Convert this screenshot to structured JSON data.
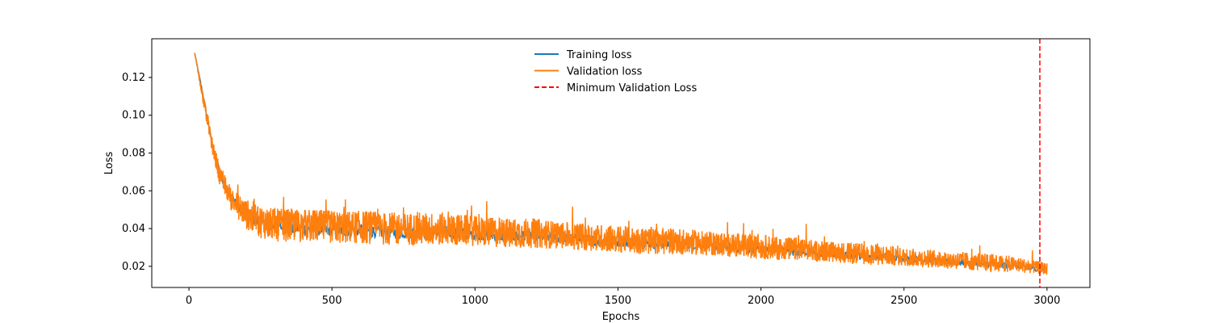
{
  "chart_data": {
    "type": "line",
    "title": "",
    "xlabel": "Epochs",
    "ylabel": "Loss",
    "xlim": [
      -130,
      3150
    ],
    "ylim": [
      0.0088,
      0.1405
    ],
    "xticks": [
      0,
      500,
      1000,
      1500,
      2000,
      2500,
      3000
    ],
    "xtick_labels": [
      "0",
      "500",
      "1000",
      "1500",
      "2000",
      "2500",
      "3000"
    ],
    "yticks": [
      0.02,
      0.04,
      0.06,
      0.08,
      0.1,
      0.12
    ],
    "ytick_labels": [
      "0.02",
      "0.04",
      "0.06",
      "0.08",
      "0.10",
      "0.12"
    ],
    "grid": false,
    "legend_position": "top-center",
    "series": [
      {
        "name": "Training loss",
        "color": "#1f77b4",
        "x": [
          20,
          50,
          80,
          110,
          150,
          200,
          250,
          300,
          400,
          500,
          600,
          700,
          800,
          900,
          1000,
          1100,
          1200,
          1300,
          1400,
          1500,
          1600,
          1700,
          1800,
          1900,
          2000,
          2100,
          2200,
          2300,
          2400,
          2500,
          2600,
          2700,
          2800,
          2900,
          3000
        ],
        "values": [
          0.133,
          0.11,
          0.086,
          0.068,
          0.056,
          0.047,
          0.043,
          0.041,
          0.04,
          0.039,
          0.039,
          0.038,
          0.038,
          0.038,
          0.037,
          0.036,
          0.036,
          0.035,
          0.034,
          0.033,
          0.032,
          0.032,
          0.031,
          0.03,
          0.029,
          0.028,
          0.027,
          0.026,
          0.025,
          0.024,
          0.023,
          0.022,
          0.021,
          0.02,
          0.018
        ]
      },
      {
        "name": "Validation loss",
        "color": "#ff7f0e",
        "x": [
          20,
          50,
          80,
          110,
          150,
          200,
          250,
          300,
          400,
          500,
          600,
          700,
          800,
          900,
          1000,
          1100,
          1200,
          1300,
          1400,
          1500,
          1600,
          1700,
          1800,
          1900,
          2000,
          2100,
          2200,
          2300,
          2400,
          2500,
          2600,
          2700,
          2800,
          2900,
          3000
        ],
        "values": [
          0.133,
          0.108,
          0.084,
          0.066,
          0.054,
          0.046,
          0.042,
          0.04,
          0.04,
          0.039,
          0.039,
          0.038,
          0.038,
          0.038,
          0.037,
          0.036,
          0.036,
          0.035,
          0.034,
          0.033,
          0.032,
          0.032,
          0.031,
          0.03,
          0.029,
          0.028,
          0.027,
          0.026,
          0.025,
          0.024,
          0.023,
          0.022,
          0.021,
          0.02,
          0.018
        ],
        "spread": [
          0.0,
          0.004,
          0.005,
          0.007,
          0.008,
          0.01,
          0.011,
          0.011,
          0.011,
          0.011,
          0.011,
          0.011,
          0.011,
          0.011,
          0.01,
          0.01,
          0.01,
          0.009,
          0.009,
          0.009,
          0.009,
          0.009,
          0.008,
          0.008,
          0.008,
          0.008,
          0.007,
          0.007,
          0.007,
          0.006,
          0.006,
          0.006,
          0.006,
          0.005,
          0.004
        ]
      }
    ],
    "vline": {
      "name": "Minimum Validation Loss",
      "x": 2975,
      "color": "#ff0000",
      "style": "dashed"
    }
  }
}
